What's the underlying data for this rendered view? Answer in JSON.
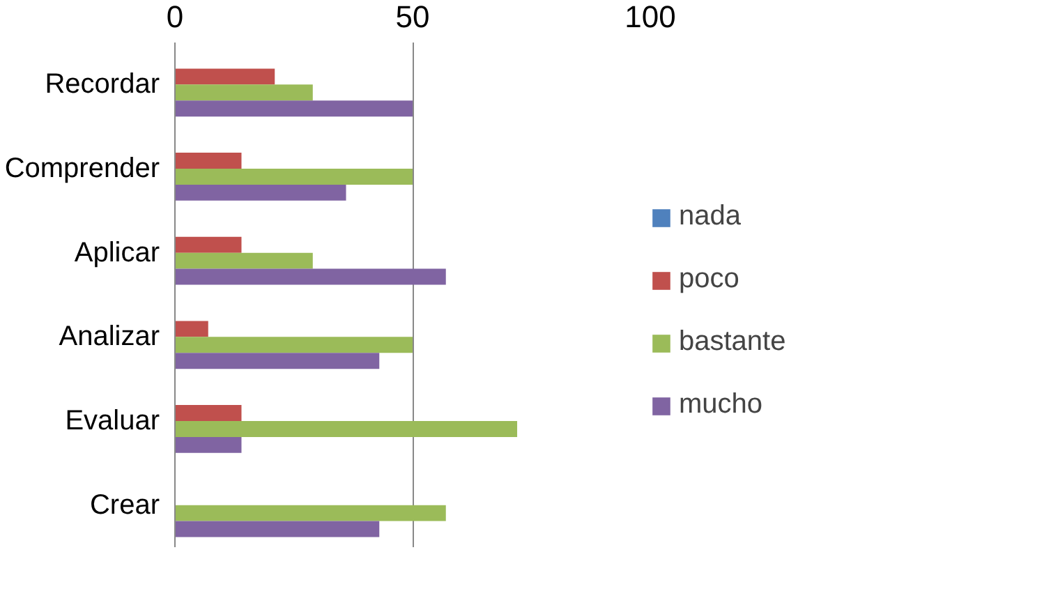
{
  "chart_data": {
    "type": "bar",
    "orientation": "horizontal",
    "categories": [
      "Recordar",
      "Comprender",
      "Aplicar",
      "Analizar",
      "Evaluar",
      "Crear"
    ],
    "series": [
      {
        "name": "nada",
        "color": "#4f81bd",
        "values": [
          0,
          0,
          0,
          0,
          0,
          0
        ]
      },
      {
        "name": "poco",
        "color": "#c0504d",
        "values": [
          21,
          14,
          14,
          7,
          14,
          0
        ]
      },
      {
        "name": "bastante",
        "color": "#9bbb59",
        "values": [
          29,
          50,
          29,
          50,
          72,
          57
        ]
      },
      {
        "name": "mucho",
        "color": "#8064a2",
        "values": [
          50,
          36,
          57,
          43,
          14,
          43
        ]
      }
    ],
    "xlim": [
      0,
      100
    ],
    "xticks": [
      0,
      50,
      100
    ],
    "grid": "x",
    "legend": "right"
  }
}
